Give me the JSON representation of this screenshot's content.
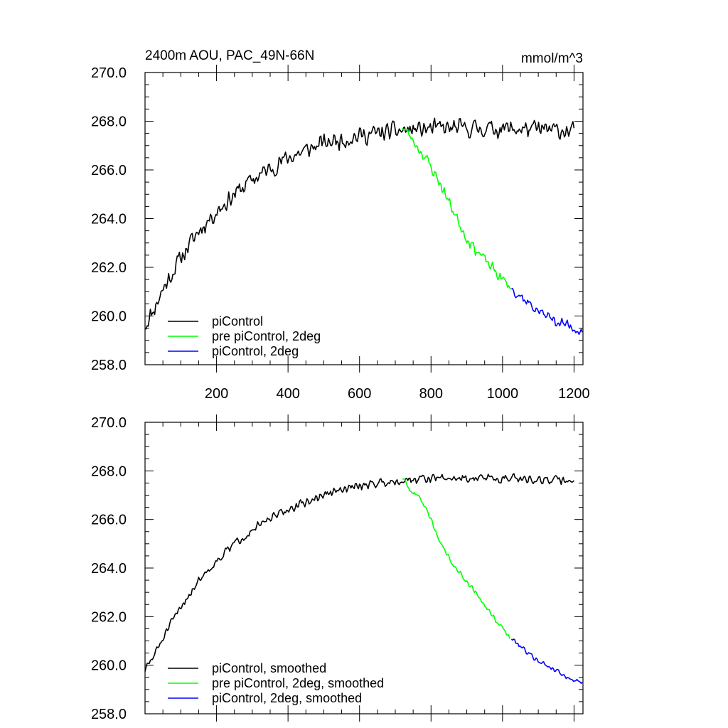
{
  "figure": {
    "title_left": "2400m AOU, PAC_49N-66N",
    "title_right": "mmol/m^3"
  },
  "chart_data": [
    {
      "type": "line",
      "name": "top-panel",
      "xlim": [
        0,
        1225
      ],
      "ylim": [
        258.0,
        270.0
      ],
      "yticks": [
        "258.0",
        "260.0",
        "262.0",
        "264.0",
        "266.0",
        "268.0",
        "270.0"
      ],
      "ytick_values": [
        258,
        260,
        262,
        264,
        266,
        268,
        270
      ],
      "xtick_values": [
        200,
        400,
        600,
        800,
        1000,
        1200
      ],
      "xtick_labels": [
        "200",
        "400",
        "600",
        "800",
        "1000",
        "1200"
      ],
      "legend_location": "bottom-left",
      "series": [
        {
          "name": "piControl",
          "color": "#000000",
          "noise": 0.45,
          "seed": 11,
          "points": [
            [
              0,
              259.6
            ],
            [
              25,
              260.3
            ],
            [
              50,
              261.1
            ],
            [
              100,
              262.4
            ],
            [
              150,
              263.5
            ],
            [
              200,
              264.3
            ],
            [
              250,
              265.0
            ],
            [
              300,
              265.6
            ],
            [
              400,
              266.5
            ],
            [
              500,
              267.1
            ],
            [
              600,
              267.4
            ],
            [
              700,
              267.6
            ],
            [
              800,
              267.7
            ],
            [
              1000,
              267.7
            ],
            [
              1200,
              267.6
            ]
          ]
        },
        {
          "name": "pre piControl, 2deg",
          "color": "#00ff00",
          "noise": 0.3,
          "seed": 23,
          "points": [
            [
              720,
              267.8
            ],
            [
              750,
              267.2
            ],
            [
              780,
              266.6
            ],
            [
              820,
              265.6
            ],
            [
              860,
              264.4
            ],
            [
              900,
              263.2
            ],
            [
              950,
              262.3
            ],
            [
              1000,
              261.5
            ],
            [
              1025,
              261.1
            ]
          ]
        },
        {
          "name": "piControl, 2deg",
          "color": "#0000ff",
          "noise": 0.3,
          "seed": 37,
          "points": [
            [
              1025,
              261.2
            ],
            [
              1060,
              260.7
            ],
            [
              1100,
              260.2
            ],
            [
              1150,
              259.8
            ],
            [
              1200,
              259.5
            ],
            [
              1225,
              259.4
            ]
          ]
        }
      ]
    },
    {
      "type": "line",
      "name": "bottom-panel",
      "xlim": [
        0,
        1225
      ],
      "ylim": [
        258.0,
        270.0
      ],
      "yticks": [
        "258.0",
        "260.0",
        "262.0",
        "264.0",
        "266.0",
        "268.0",
        "270.0"
      ],
      "ytick_values": [
        258,
        260,
        262,
        264,
        266,
        268,
        270
      ],
      "xtick_values": [
        200,
        400,
        600,
        800,
        1000,
        1200
      ],
      "xtick_labels": [],
      "legend_location": "bottom-left",
      "series": [
        {
          "name": "piControl, smoothed",
          "color": "#000000",
          "noise": 0.22,
          "seed": 51,
          "points": [
            [
              0,
              259.8
            ],
            [
              25,
              260.4
            ],
            [
              50,
              261.1
            ],
            [
              100,
              262.4
            ],
            [
              150,
              263.5
            ],
            [
              200,
              264.3
            ],
            [
              250,
              265.0
            ],
            [
              300,
              265.6
            ],
            [
              400,
              266.4
            ],
            [
              500,
              267.0
            ],
            [
              600,
              267.4
            ],
            [
              700,
              267.6
            ],
            [
              800,
              267.7
            ],
            [
              1000,
              267.7
            ],
            [
              1200,
              267.6
            ]
          ]
        },
        {
          "name": "pre piControl, 2deg, smoothed",
          "color": "#00ff00",
          "noise": 0.12,
          "seed": 63,
          "points": [
            [
              720,
              267.7
            ],
            [
              740,
              267.2
            ],
            [
              770,
              266.9
            ],
            [
              800,
              266.0
            ],
            [
              830,
              264.9
            ],
            [
              870,
              264.0
            ],
            [
              920,
              263.1
            ],
            [
              960,
              262.3
            ],
            [
              1000,
              261.5
            ],
            [
              1020,
              261.1
            ]
          ]
        },
        {
          "name": "piControl, 2deg, smoothed",
          "color": "#0000ff",
          "noise": 0.12,
          "seed": 79,
          "points": [
            [
              1025,
              261.1
            ],
            [
              1050,
              260.8
            ],
            [
              1080,
              260.4
            ],
            [
              1110,
              260.1
            ],
            [
              1150,
              259.8
            ],
            [
              1180,
              259.5
            ],
            [
              1225,
              259.3
            ]
          ]
        }
      ]
    }
  ]
}
